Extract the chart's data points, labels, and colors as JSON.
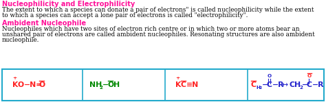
{
  "title1": "Nucleophilicity and Electrophilicity",
  "title1_color": "#FF1199",
  "para1_l1": "The extent to which a species can donate a pair of electrons\" is called nucleophilicity while the extent",
  "para1_l2": "to which a species can accept a lone pair of electrons is called \"electrophilicity\".",
  "para_color": "#000000",
  "title2": "Ambident Nucleophile",
  "title2_color": "#FF1199",
  "para2_l1": "Nucleophiles which have two sites of electron rich centre or in which two or more atoms bear an",
  "para2_l2": "unshared pair of electrons are called ambident nucleophiles. Resonating structures are also ambident",
  "para2_l3": "nucleophile.",
  "box_border_color": "#22AACC",
  "bg_color": "#FFFFFF",
  "red": "#FF2222",
  "green": "#008800",
  "blue": "#2222CC",
  "fs_title": 7.0,
  "fs_body": 6.3,
  "fs_chem": 7.8,
  "fs_sup": 5.2
}
